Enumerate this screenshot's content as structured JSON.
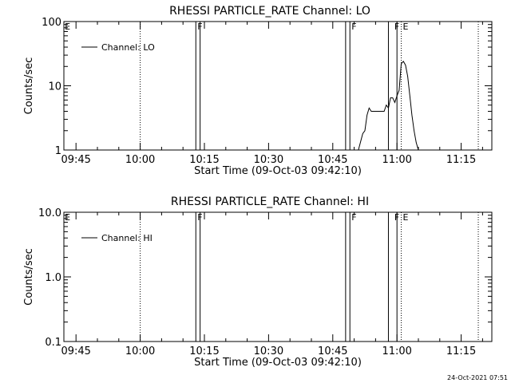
{
  "footer_timestamp": "24-Oct-2021 07:51",
  "chart_data": [
    {
      "type": "line",
      "title": "RHESSI PARTICLE_RATE Channel: LO",
      "xlabel": "Start Time (09-Oct-03 09:42:10)",
      "ylabel": "Counts/sec",
      "x_ticks": [
        "09:45",
        "10:00",
        "10:15",
        "10:30",
        "10:45",
        "11:00",
        "11:15"
      ],
      "y_scale": "log",
      "ylim": [
        1,
        100
      ],
      "y_ticks": [
        "1",
        "10",
        "100"
      ],
      "legend": {
        "position": "top-left",
        "label": "Channel: LO"
      },
      "markers": [
        {
          "label": "E",
          "time": "09:42"
        },
        {
          "label": "F",
          "time": "10:13"
        },
        {
          "label": "F",
          "time": "10:49"
        },
        {
          "label": "F",
          "time": "10:59"
        },
        {
          "label": "E",
          "time": "11:01"
        }
      ],
      "dotted_lines": [
        "10:00",
        "11:01",
        "11:19"
      ],
      "double_lines": [
        [
          "10:13",
          "10:14"
        ],
        [
          "10:48",
          "10:49"
        ],
        [
          "10:58",
          "11:00"
        ]
      ],
      "series": [
        {
          "label": "Channel: LO",
          "x": [
            "10:51",
            "10:52",
            "10:52.5",
            "10:53",
            "10:53.5",
            "10:54",
            "10:55",
            "10:56",
            "10:57",
            "10:57.5",
            "10:58",
            "10:58.5",
            "10:59",
            "10:59.5",
            "11:00",
            "11:00.5",
            "11:01",
            "11:01.5",
            "11:02",
            "11:02.5",
            "11:03",
            "11:03.5",
            "11:04",
            "11:04.5",
            "11:05"
          ],
          "y": [
            1.0,
            1.8,
            2.0,
            3.5,
            4.5,
            4.0,
            4.0,
            4.0,
            4.0,
            5.0,
            4.5,
            6.5,
            6.5,
            5.5,
            7.0,
            8.5,
            22.0,
            24.0,
            21.0,
            14.0,
            7.0,
            3.5,
            2.0,
            1.3,
            1.0
          ]
        }
      ]
    },
    {
      "type": "line",
      "title": "RHESSI PARTICLE_RATE Channel: HI",
      "xlabel": "Start Time (09-Oct-03 09:42:10)",
      "ylabel": "Counts/sec",
      "x_ticks": [
        "09:45",
        "10:00",
        "10:15",
        "10:30",
        "10:45",
        "11:00",
        "11:15"
      ],
      "y_scale": "log",
      "ylim": [
        0.1,
        10
      ],
      "y_ticks": [
        "0.1",
        "1.0",
        "10.0"
      ],
      "legend": {
        "position": "top-left",
        "label": "Channel: HI"
      },
      "markers": [
        {
          "label": "E",
          "time": "09:42"
        },
        {
          "label": "F",
          "time": "10:13"
        },
        {
          "label": "F",
          "time": "10:49"
        },
        {
          "label": "F",
          "time": "10:59"
        },
        {
          "label": "E",
          "time": "11:01"
        }
      ],
      "dotted_lines": [
        "10:00",
        "11:01",
        "11:19"
      ],
      "double_lines": [
        [
          "10:13",
          "10:14"
        ],
        [
          "10:48",
          "10:49"
        ],
        [
          "10:58",
          "11:00"
        ]
      ],
      "series": [
        {
          "label": "Channel: HI",
          "x": [],
          "y": []
        }
      ]
    }
  ]
}
